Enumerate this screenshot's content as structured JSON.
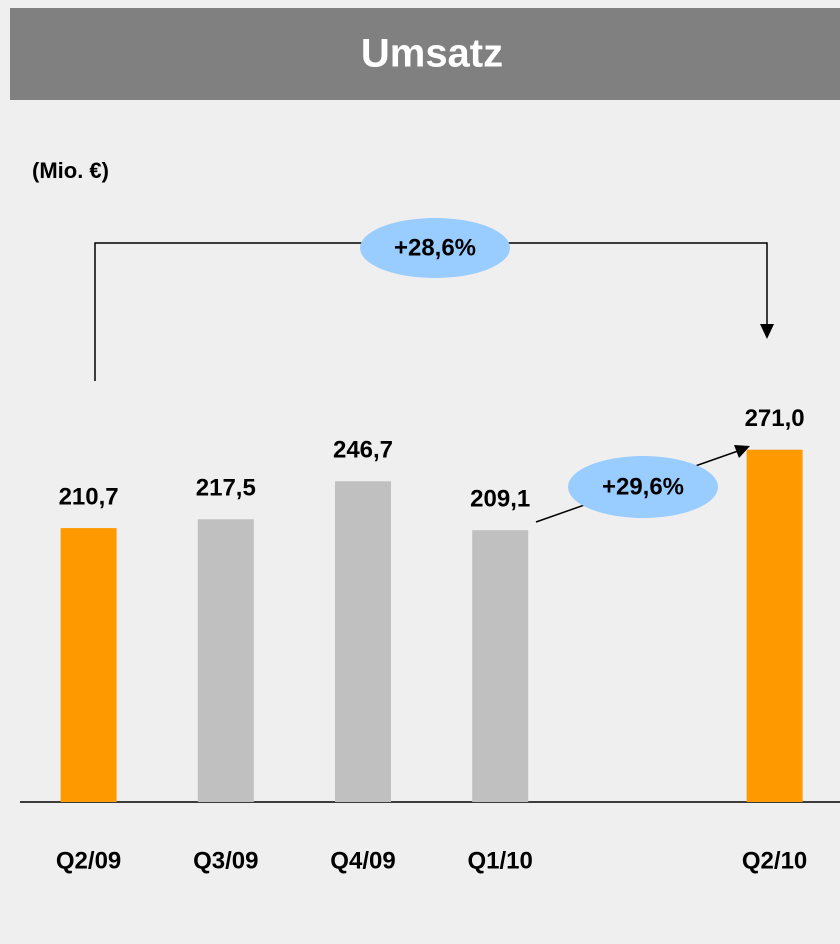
{
  "chart_data": {
    "type": "bar",
    "title": "Umsatz",
    "unit_label": "(Mio. €)",
    "categories": [
      "Q2/09",
      "Q3/09",
      "Q4/09",
      "Q1/10",
      null,
      "Q2/10"
    ],
    "values": [
      210.7,
      217.5,
      246.7,
      209.1,
      null,
      271.0
    ],
    "value_labels": [
      "210,7",
      "217,5",
      "246,7",
      "209,1",
      null,
      "271,0"
    ],
    "colors": [
      "#ff9900",
      "#c0c0c0",
      "#c0c0c0",
      "#c0c0c0",
      null,
      "#ff9900"
    ],
    "ylim": [
      0,
      300
    ],
    "annotations": [
      "+28,6%",
      "+29,6%"
    ]
  }
}
